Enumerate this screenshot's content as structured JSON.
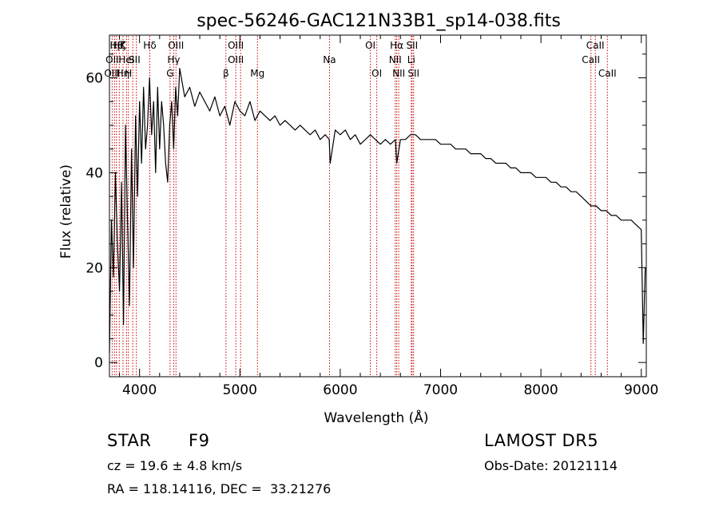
{
  "chart_data": {
    "type": "line",
    "title": "spec-56246-GAC121N33B1_sp14-038.fits",
    "xlabel": "Wavelength (Å)",
    "ylabel": "Flux (relative)",
    "xlim": [
      3700,
      9050
    ],
    "ylim": [
      -3,
      69
    ],
    "xticks": [
      4000,
      5000,
      6000,
      7000,
      8000,
      9000
    ],
    "yticks": [
      0,
      20,
      40,
      60
    ],
    "grid": false,
    "line_color": "#000000",
    "marker_color": "#cc0000",
    "series": [
      {
        "x": [
          3700,
          3720,
          3740,
          3760,
          3780,
          3800,
          3820,
          3840,
          3860,
          3880,
          3900,
          3920,
          3940,
          3960,
          3980,
          4000,
          4020,
          4040,
          4060,
          4080,
          4100,
          4120,
          4140,
          4160,
          4180,
          4200,
          4220,
          4240,
          4260,
          4280,
          4300,
          4320,
          4340,
          4360,
          4380,
          4400,
          4450,
          4500,
          4550,
          4600,
          4650,
          4700,
          4750,
          4800,
          4850,
          4900,
          4950,
          5000,
          5050,
          5100,
          5150,
          5200,
          5250,
          5300,
          5350,
          5400,
          5450,
          5500,
          5550,
          5600,
          5650,
          5700,
          5750,
          5800,
          5850,
          5890,
          5900,
          5950,
          6000,
          6050,
          6100,
          6150,
          6200,
          6250,
          6300,
          6350,
          6400,
          6450,
          6500,
          6550,
          6563,
          6600,
          6650,
          6700,
          6750,
          6800,
          6850,
          6900,
          6950,
          7000,
          7050,
          7100,
          7150,
          7200,
          7250,
          7300,
          7350,
          7400,
          7450,
          7500,
          7550,
          7600,
          7650,
          7700,
          7750,
          7800,
          7850,
          7900,
          7950,
          8000,
          8050,
          8100,
          8150,
          8200,
          8250,
          8300,
          8350,
          8400,
          8450,
          8500,
          8550,
          8600,
          8650,
          8700,
          8750,
          8800,
          8850,
          8900,
          8950,
          9000,
          9020,
          9040
        ],
        "y": [
          2,
          30,
          18,
          40,
          25,
          15,
          38,
          8,
          50,
          30,
          12,
          45,
          20,
          52,
          35,
          55,
          42,
          58,
          45,
          50,
          60,
          48,
          55,
          40,
          58,
          45,
          55,
          50,
          42,
          38,
          50,
          55,
          45,
          58,
          52,
          62,
          56,
          58,
          54,
          57,
          55,
          53,
          56,
          52,
          54,
          50,
          55,
          53,
          52,
          55,
          51,
          53,
          52,
          51,
          52,
          50,
          51,
          50,
          49,
          50,
          49,
          48,
          49,
          47,
          48,
          47,
          42,
          49,
          48,
          49,
          47,
          48,
          46,
          47,
          48,
          47,
          46,
          47,
          46,
          47,
          42,
          47,
          47,
          48,
          48,
          47,
          47,
          47,
          47,
          46,
          46,
          46,
          45,
          45,
          45,
          44,
          44,
          44,
          43,
          43,
          42,
          42,
          42,
          41,
          41,
          40,
          40,
          40,
          39,
          39,
          39,
          38,
          38,
          37,
          37,
          36,
          36,
          35,
          34,
          33,
          33,
          32,
          32,
          31,
          31,
          30,
          30,
          30,
          29,
          28,
          4,
          20
        ]
      }
    ],
    "spectral_lines": [
      {
        "label": "Hβ",
        "wavelength": 3770,
        "row": 0
      },
      {
        "label": "OII",
        "wavelength": 3727,
        "row": 1
      },
      {
        "label": "OIII",
        "wavelength": 3727,
        "row": 2
      },
      {
        "label": "Hζ",
        "wavelength": 3798,
        "row": 0
      },
      {
        "label": "K",
        "wavelength": 3835,
        "row": 0
      },
      {
        "label": "HeI",
        "wavelength": 3870,
        "row": 1
      },
      {
        "label": "Hη",
        "wavelength": 3835,
        "row": 2
      },
      {
        "label": "H",
        "wavelength": 3889,
        "row": 2
      },
      {
        "label": "SII",
        "wavelength": 3950,
        "row": 1
      },
      {
        "label": "Hδ",
        "wavelength": 4102,
        "row": 0
      },
      {
        "label": "OIII",
        "wavelength": 4363,
        "row": 0
      },
      {
        "label": "Hγ",
        "wavelength": 4340,
        "row": 1
      },
      {
        "label": "G",
        "wavelength": 4304,
        "row": 2
      },
      {
        "label": "OIII",
        "wavelength": 4959,
        "row": 0
      },
      {
        "label": "OIII",
        "wavelength": 4959,
        "row": 1
      },
      {
        "label": "β",
        "wavelength": 4861,
        "row": 2
      },
      {
        "label": "Mg",
        "wavelength": 5175,
        "row": 2
      },
      {
        "label": "Na",
        "wavelength": 5893,
        "row": 1
      },
      {
        "label": "OI",
        "wavelength": 6300,
        "row": 0
      },
      {
        "label": "OI",
        "wavelength": 6364,
        "row": 2
      },
      {
        "label": "Hα",
        "wavelength": 6563,
        "row": 0
      },
      {
        "label": "SII",
        "wavelength": 6716,
        "row": 0
      },
      {
        "label": "NII",
        "wavelength": 6548,
        "row": 1
      },
      {
        "label": "Li",
        "wavelength": 6708,
        "row": 1
      },
      {
        "label": "NII",
        "wavelength": 6583,
        "row": 2
      },
      {
        "label": "SII",
        "wavelength": 6731,
        "row": 2
      },
      {
        "label": "CaII",
        "wavelength": 8542,
        "row": 0
      },
      {
        "label": "CaII",
        "wavelength": 8498,
        "row": 1
      },
      {
        "label": "CaII",
        "wavelength": 8662,
        "row": 2
      }
    ],
    "marker_wavelengths": [
      3727,
      3750,
      3770,
      3798,
      3835,
      3870,
      3889,
      3933,
      3968,
      4102,
      4304,
      4340,
      4363,
      4861,
      4959,
      5007,
      5175,
      5893,
      6300,
      6364,
      6548,
      6563,
      6583,
      6708,
      6716,
      6731,
      8498,
      8542,
      8662
    ]
  },
  "info": {
    "class": "STAR",
    "subclass": "F9",
    "survey": "LAMOST DR5",
    "cz": "cz = 19.6 ± 4.8 km/s",
    "obs_date": "Obs-Date: 20121114",
    "radec": "RA = 118.14116, DEC =  33.21276"
  }
}
